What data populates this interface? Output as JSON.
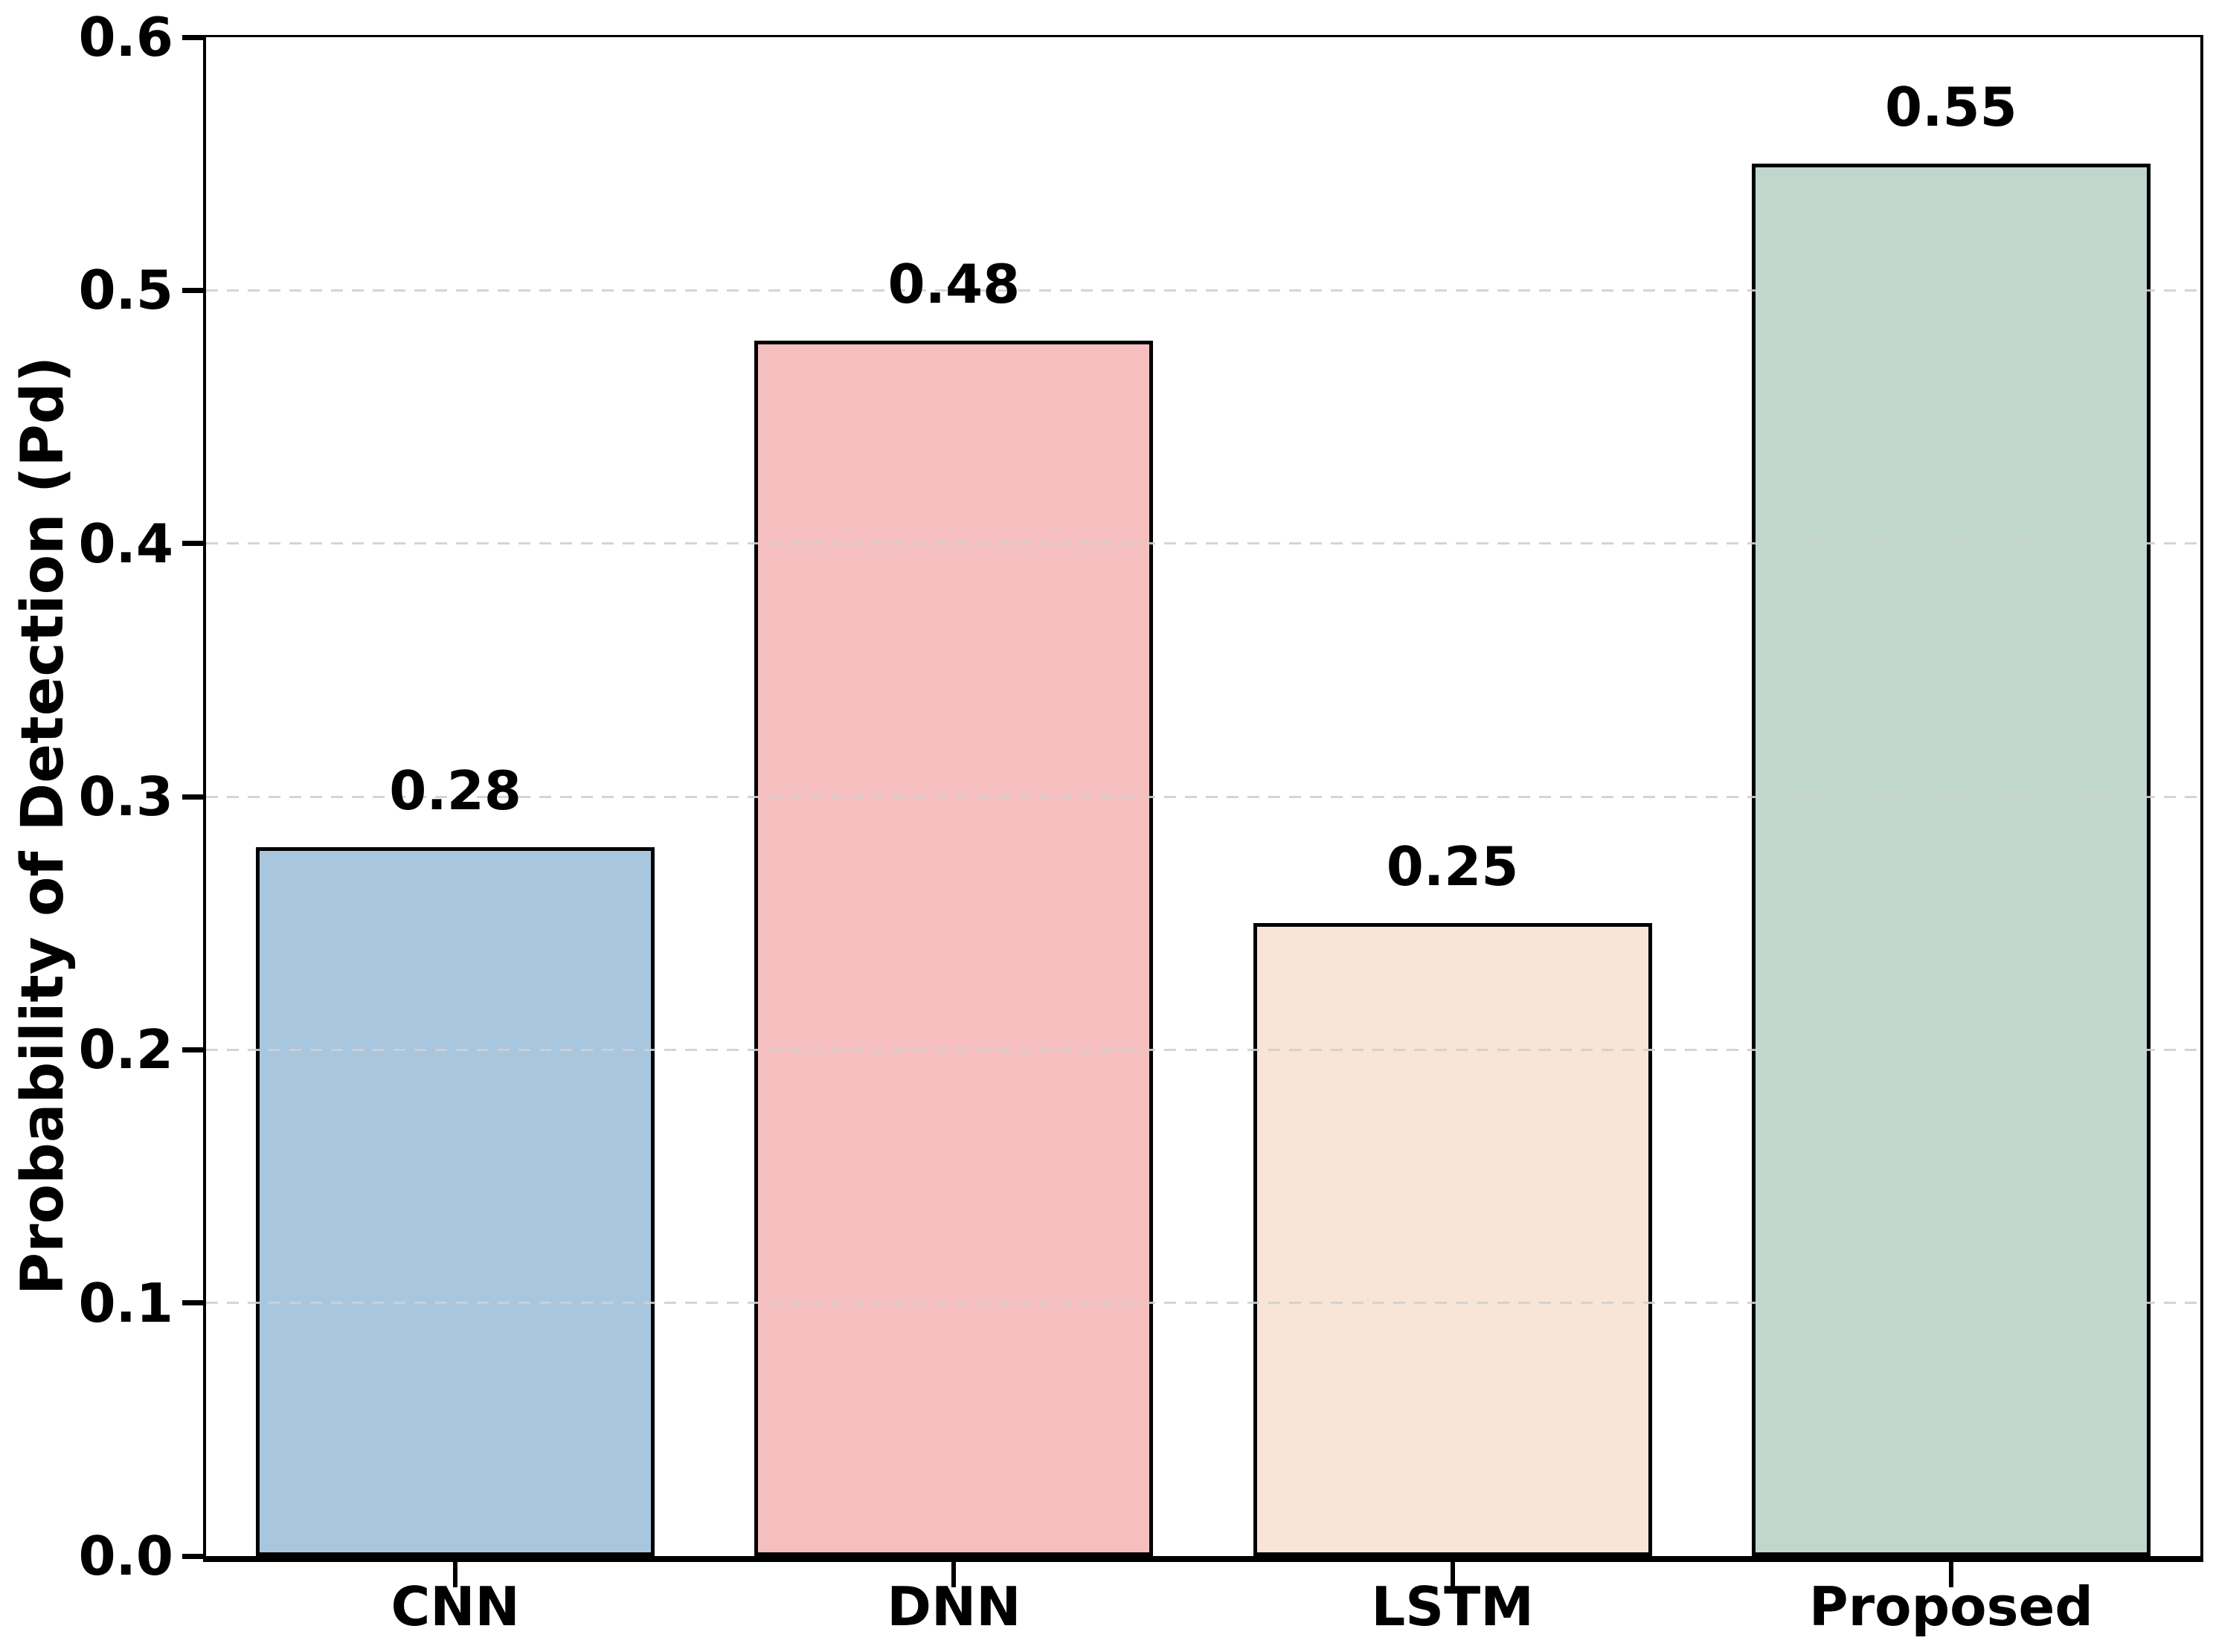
{
  "chart_data": {
    "type": "bar",
    "categories": [
      "CNN",
      "DNN",
      "LSTM",
      "Proposed"
    ],
    "values": [
      0.28,
      0.48,
      0.25,
      0.55
    ],
    "value_labels": [
      "0.28",
      "0.48",
      "0.25",
      "0.55"
    ],
    "bar_colors": [
      "#a9c6df",
      "#f5bfbf",
      "#f8e5d8",
      "#c1d7ce"
    ],
    "bar_edge_color": "#000000",
    "title": "",
    "xlabel": "",
    "ylabel": "Probability of Detection (Pd)",
    "ylim": [
      0.0,
      0.6
    ],
    "yticks": [
      "0.0",
      "0.1",
      "0.2",
      "0.3",
      "0.4",
      "0.5",
      "0.6"
    ],
    "grid": "horizontal dashed",
    "grid_color": "#d0d0d0",
    "axis_color": "#000000",
    "background_color": "#ffffff",
    "legend": "none"
  }
}
